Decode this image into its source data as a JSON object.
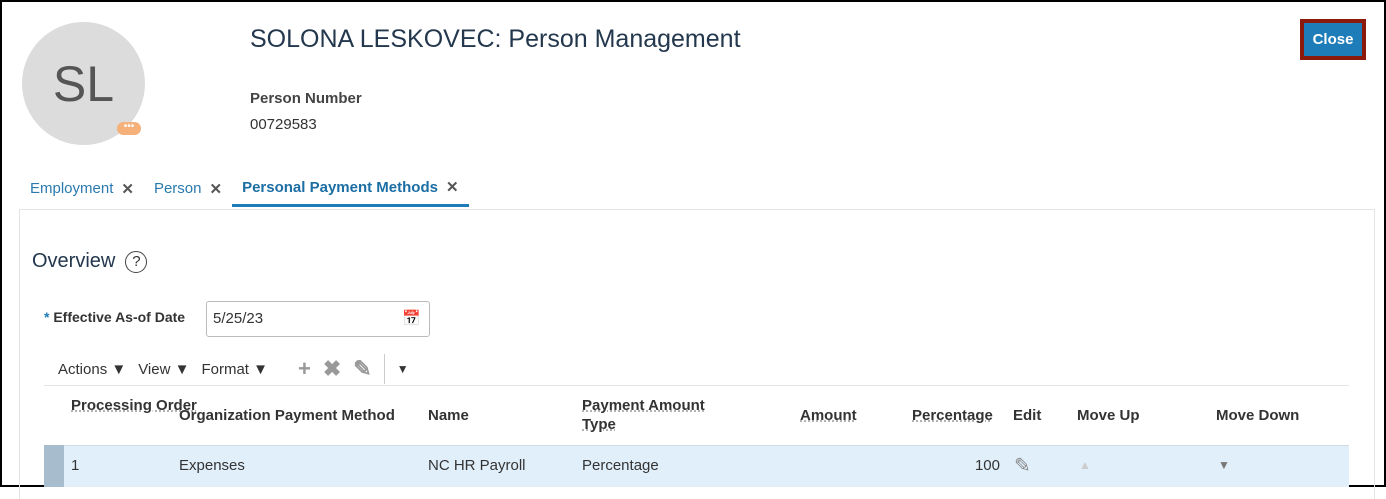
{
  "header": {
    "initials": "SL",
    "title": "SOLONA LESKOVEC: Person Management",
    "person_number_label": "Person Number",
    "person_number": "00729583",
    "close_label": "Close"
  },
  "tabs": [
    {
      "label": "Employment"
    },
    {
      "label": "Person"
    },
    {
      "label": "Personal Payment Methods",
      "active": true
    }
  ],
  "overview": {
    "title": "Overview",
    "help": "?",
    "date_label": "Effective As-of Date",
    "required": "*",
    "date_value": "5/25/23"
  },
  "toolbar": {
    "actions": "Actions ▼",
    "view": "View ▼",
    "format": "Format ▼"
  },
  "table": {
    "columns": [
      "Processing Order",
      "Organization Payment Method",
      "Name",
      "Payment Amount Type",
      "Amount",
      "Percentage",
      "Edit",
      "Move Up",
      "Move Down"
    ],
    "rows": [
      {
        "order": "1",
        "method": "Expenses",
        "name": "NC HR Payroll",
        "type": "Percentage",
        "amount": "",
        "percentage": "100"
      }
    ]
  },
  "colors": {
    "accent": "#1e7cb8",
    "close_border": "#8b1a0c",
    "row_selected": "#e1effb"
  }
}
